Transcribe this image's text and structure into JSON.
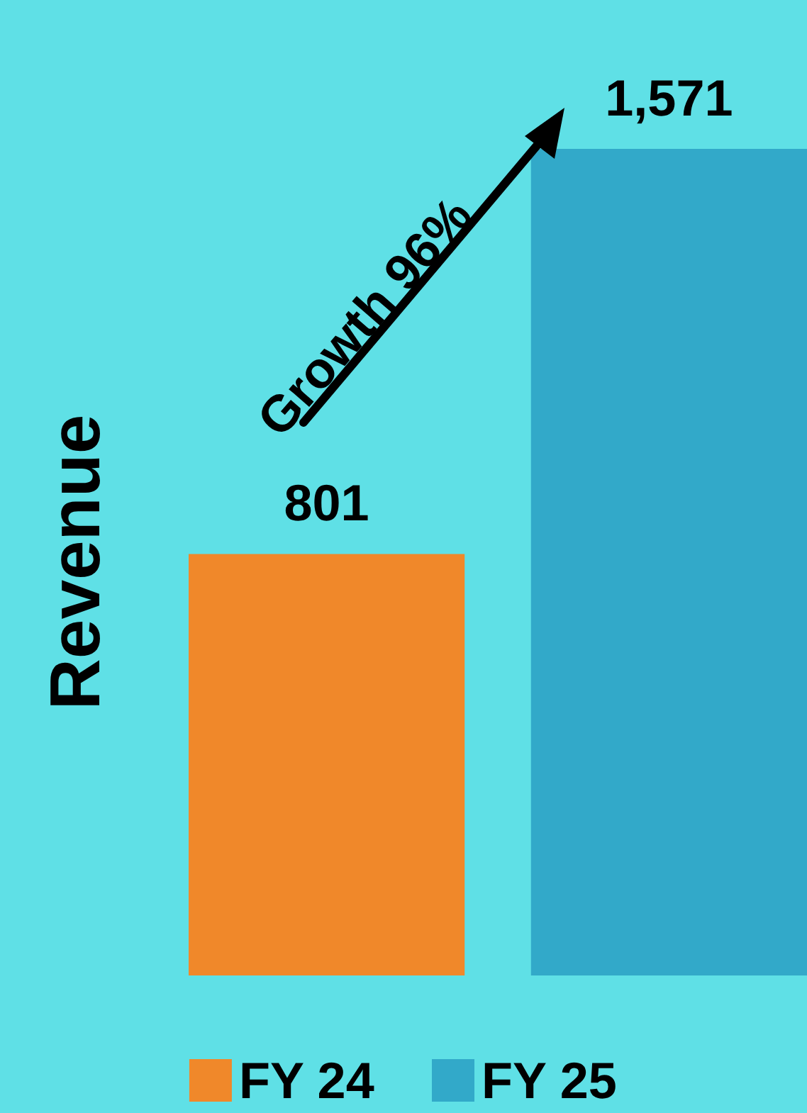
{
  "chart_data": {
    "type": "bar",
    "ylabel": "Revenue",
    "categories": [
      null
    ],
    "series": [
      {
        "name": "FY 24",
        "color": "#f0882a",
        "values": [
          801
        ],
        "value_labels": [
          "801"
        ]
      },
      {
        "name": "FY 25",
        "color": "#32a9c9",
        "values": [
          1571
        ],
        "value_labels": [
          "1,571"
        ]
      }
    ],
    "annotations": [
      "Growth 96%"
    ],
    "tick_labels": false,
    "grid": false,
    "legend": "bottom"
  }
}
